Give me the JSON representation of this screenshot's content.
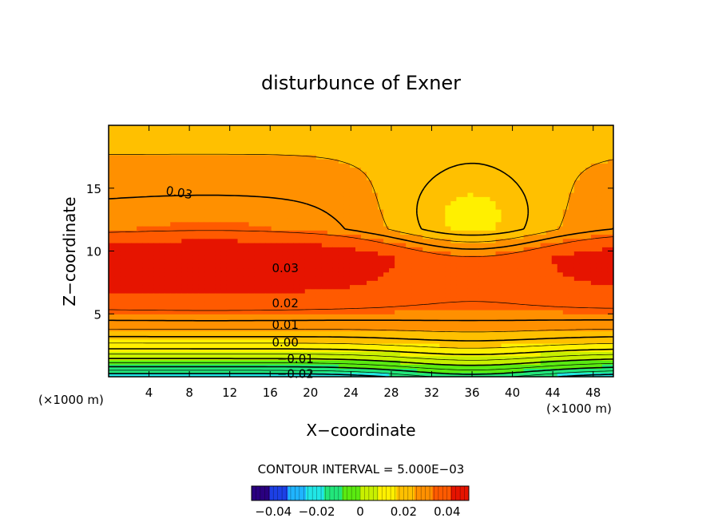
{
  "chart_data": {
    "type": "heatmap",
    "title": "disturbunce of Exner",
    "xlabel": "X−coordinate",
    "ylabel": "Z−coordinate",
    "x_unit": "(×1000 m)",
    "y_unit": "(×1000 m)",
    "xlim": [
      0,
      50
    ],
    "ylim": [
      0,
      20
    ],
    "x_ticks": [
      4,
      8,
      12,
      16,
      20,
      24,
      28,
      32,
      36,
      40,
      44,
      48
    ],
    "y_ticks": [
      5,
      10,
      15
    ],
    "contour_interval_text": "CONTOUR INTERVAL = 5.000E−03",
    "contour_interval": 0.005,
    "contour_labels": [
      {
        "text": "0.03",
        "x": 7.0,
        "z": 14.7
      },
      {
        "text": "0.03",
        "x": 17.5,
        "z": 8.7
      },
      {
        "text": "0.02",
        "x": 17.5,
        "z": 5.9
      },
      {
        "text": "0.01",
        "x": 17.5,
        "z": 4.2
      },
      {
        "text": "0.00",
        "x": 17.5,
        "z": 2.8
      },
      {
        "text": "−0.01",
        "x": 18.5,
        "z": 1.5
      },
      {
        "text": "−0.02",
        "x": 18.5,
        "z": 0.3
      }
    ],
    "colorbar": {
      "range": [
        -0.05,
        0.05
      ],
      "ticks": [
        -0.04,
        -0.02,
        0,
        0.02,
        0.04
      ],
      "tick_labels": [
        "−0.04",
        "−0.02",
        "0",
        "0.02",
        "0.04"
      ],
      "colors": [
        "#2a0080",
        "#1c40e6",
        "#1fb4ff",
        "#21e6e6",
        "#22e67a",
        "#5aea10",
        "#c8f000",
        "#fff000",
        "#ffc000",
        "#ff9000",
        "#ff5a00",
        "#e61400"
      ]
    }
  }
}
